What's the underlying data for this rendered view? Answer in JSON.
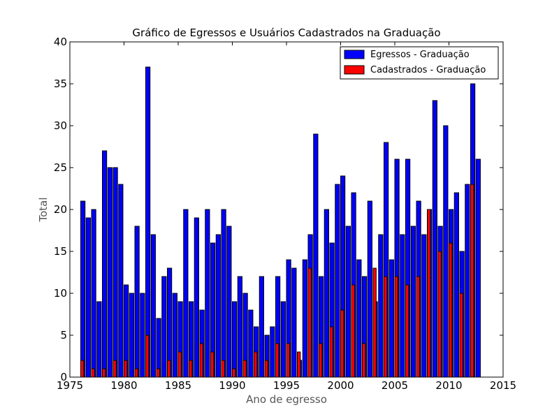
{
  "chart_data": {
    "type": "bar",
    "title": "Gráfico de Egressos e Usuários Cadastrados na Graduação",
    "xlabel": "Ano de egresso",
    "ylabel": "Total",
    "xlim": [
      1975,
      2015
    ],
    "ylim": [
      0,
      40
    ],
    "x_ticks": [
      "1975",
      "1980",
      "1985",
      "1990",
      "1995",
      "2000",
      "2005",
      "2010",
      "2015"
    ],
    "y_ticks": [
      "0",
      "5",
      "10",
      "15",
      "20",
      "25",
      "30",
      "35",
      "40"
    ],
    "legend_position": "top-right",
    "grid": false,
    "series": [
      {
        "name": "Egressos - Graduação",
        "color": "#0000ff",
        "x": [
          1976.0,
          1976.5,
          1977.0,
          1977.5,
          1978.0,
          1978.5,
          1979.0,
          1979.5,
          1980.0,
          1980.5,
          1981.0,
          1981.5,
          1982.0,
          1982.5,
          1983.0,
          1983.5,
          1984.0,
          1984.5,
          1985.0,
          1985.5,
          1986.0,
          1986.5,
          1987.0,
          1987.5,
          1988.0,
          1988.5,
          1989.0,
          1989.5,
          1990.0,
          1990.5,
          1991.0,
          1991.5,
          1992.0,
          1992.5,
          1993.0,
          1993.5,
          1994.0,
          1994.5,
          1995.0,
          1995.5,
          1996.0,
          1996.5,
          1997.0,
          1997.5,
          1998.0,
          1998.5,
          1999.0,
          1999.5,
          2000.0,
          2000.5,
          2001.0,
          2001.5,
          2002.0,
          2002.5,
          2003.0,
          2003.5,
          2004.0,
          2004.5,
          2005.0,
          2005.5,
          2006.0,
          2006.5,
          2007.0,
          2007.5,
          2008.0,
          2008.5,
          2009.0,
          2009.5,
          2010.0,
          2010.5,
          2011.0,
          2011.5,
          2012.0,
          2012.5
        ],
        "values": [
          21,
          19,
          20,
          9,
          27,
          25,
          25,
          23,
          11,
          10,
          18,
          10,
          37,
          17,
          7,
          12,
          13,
          10,
          9,
          20,
          9,
          19,
          8,
          20,
          16,
          17,
          20,
          18,
          9,
          12,
          10,
          8,
          6,
          12,
          5,
          6,
          12,
          9,
          14,
          13,
          2,
          14,
          17,
          29,
          12,
          20,
          16,
          23,
          24,
          18,
          22,
          14,
          12,
          21,
          9,
          17,
          28,
          14,
          26,
          17,
          26,
          18,
          21,
          17,
          20,
          33,
          18,
          30,
          20,
          22,
          15,
          23,
          35,
          26
        ]
      },
      {
        "name": "Cadastrados - Graduação",
        "color": "#ff0000",
        "x": [
          1976,
          1977,
          1978,
          1979,
          1980,
          1981,
          1982,
          1983,
          1984,
          1985,
          1986,
          1987,
          1988,
          1989,
          1990,
          1991,
          1992,
          1993,
          1994,
          1995,
          1996,
          1997,
          1998,
          1999,
          2000,
          2001,
          2002,
          2003,
          2004,
          2005,
          2006,
          2007,
          2008,
          2009,
          2010,
          2011,
          2012
        ],
        "values": [
          2,
          1,
          1,
          2,
          2,
          1,
          5,
          1,
          2,
          3,
          2,
          4,
          3,
          2,
          1,
          2,
          3,
          2,
          4,
          4,
          3,
          13,
          4,
          6,
          8,
          11,
          4,
          13,
          12,
          12,
          11,
          12,
          20,
          15,
          16,
          10,
          23
        ]
      }
    ]
  }
}
